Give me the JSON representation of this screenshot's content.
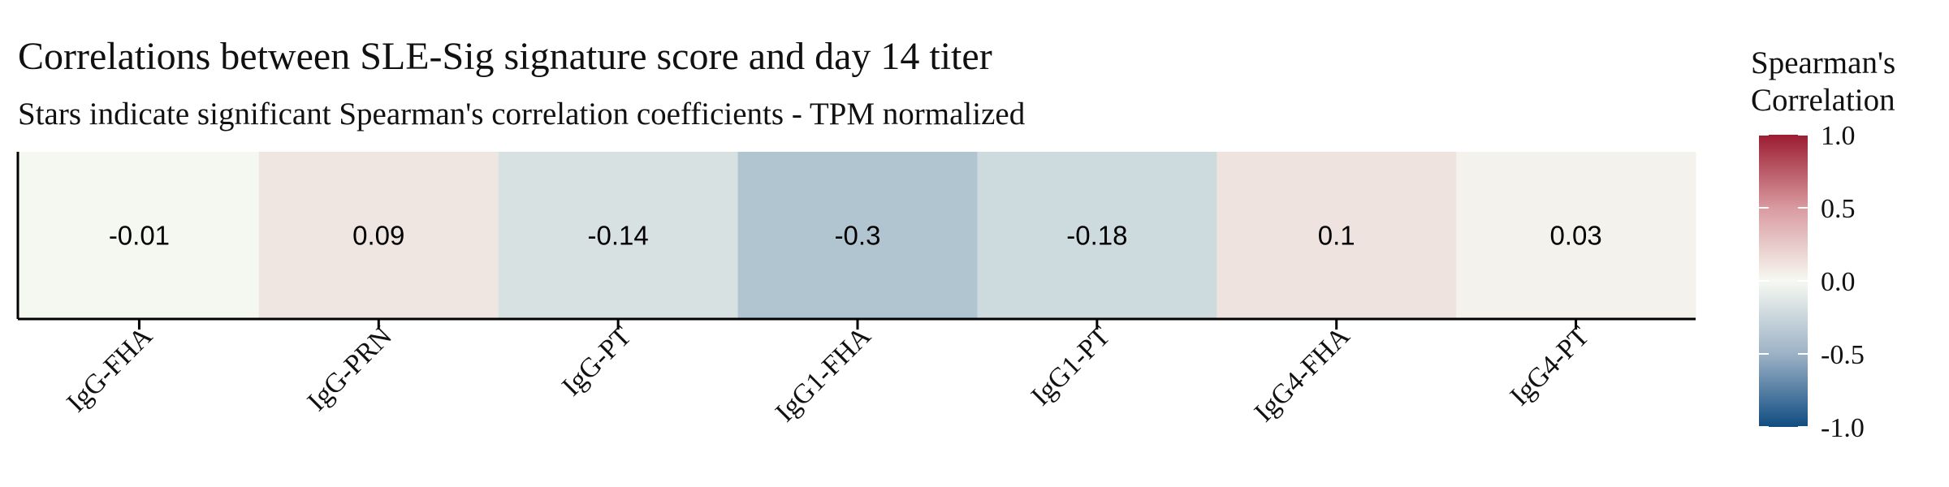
{
  "chart_data": {
    "type": "heatmap",
    "title": "Correlations between SLE-Sig signature score and day 14 titer",
    "subtitle": "Stars indicate significant Spearman's correlation coefficients - TPM normalized",
    "categories": [
      "IgG-FHA",
      "IgG-PRN",
      "IgG-PT",
      "IgG1-FHA",
      "IgG1-PT",
      "IgG4-FHA",
      "IgG4-PT"
    ],
    "values": [
      -0.01,
      0.09,
      -0.14,
      -0.3,
      -0.18,
      0.1,
      0.03
    ],
    "cell_labels": [
      "-0.01",
      "0.09",
      "-0.14",
      "-0.3",
      "-0.18",
      "0.1",
      "0.03"
    ],
    "legend": {
      "title_line1": "Spearman's",
      "title_line2": "Correlation",
      "ticks": [
        1.0,
        0.5,
        0.0,
        -0.5,
        -1.0
      ],
      "tick_labels": [
        "1.0",
        "0.5",
        "0.0",
        "-0.5",
        "-1.0"
      ],
      "range": [
        -1,
        1
      ],
      "placement": "right",
      "low_color": "#0f4c81",
      "mid_color": "#f7f9f2",
      "high_color": "#9b1c31"
    }
  }
}
